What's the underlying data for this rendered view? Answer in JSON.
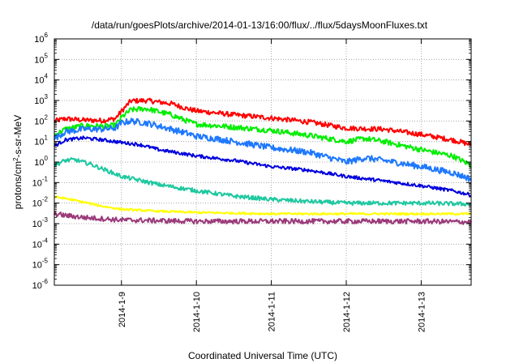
{
  "chart_data": {
    "type": "line",
    "title": "/data/run/goesPlots/archive/2014-01-13/16:00/flux/../flux/5daysMoonFluxes.txt",
    "xlabel": "Coordinated Universal Time (UTC)",
    "ylabel": {
      "base": "protons/cm",
      "sup": "2",
      "rest": "-s-sr-MeV"
    },
    "y_scale": "log",
    "ylim": [
      1e-06,
      1000000.0
    ],
    "y_ticks": [
      {
        "value": 1e-06,
        "base": "10",
        "exp": "-6"
      },
      {
        "value": 1e-05,
        "base": "10",
        "exp": "-5"
      },
      {
        "value": 0.0001,
        "base": "10",
        "exp": "-4"
      },
      {
        "value": 0.001,
        "base": "10",
        "exp": "-3"
      },
      {
        "value": 0.01,
        "base": "10",
        "exp": "-2"
      },
      {
        "value": 0.1,
        "base": "10",
        "exp": "-1"
      },
      {
        "value": 1.0,
        "base": "10",
        "exp": "0"
      },
      {
        "value": 10.0,
        "base": "10",
        "exp": "1"
      },
      {
        "value": 100.0,
        "base": "10",
        "exp": "2"
      },
      {
        "value": 1000.0,
        "base": "10",
        "exp": "3"
      },
      {
        "value": 10000.0,
        "base": "10",
        "exp": "4"
      },
      {
        "value": 100000.0,
        "base": "10",
        "exp": "5"
      },
      {
        "value": 1000000.0,
        "base": "10",
        "exp": "6"
      }
    ],
    "xlim": [
      "2014-01-08T02:30",
      "2014-01-13T16:00"
    ],
    "x_ticks": [
      {
        "value": "2014-01-09T00:00",
        "label": "2014-1-9"
      },
      {
        "value": "2014-01-10T00:00",
        "label": "2014-1-10"
      },
      {
        "value": "2014-01-11T00:00",
        "label": "2014-1-11"
      },
      {
        "value": "2014-01-12T00:00",
        "label": "2014-1-12"
      },
      {
        "value": "2014-01-13T00:00",
        "label": "2014-1-13"
      }
    ],
    "grid": true,
    "grid_style": "dotted",
    "series": [
      {
        "color": "#ff0000",
        "noise": 0.12,
        "points": [
          [
            "2014-01-08T02:30",
            100
          ],
          [
            "2014-01-08T06:00",
            130
          ],
          [
            "2014-01-08T12:00",
            110
          ],
          [
            "2014-01-08T18:00",
            105
          ],
          [
            "2014-01-08T22:00",
            130
          ],
          [
            "2014-01-09T00:00",
            300
          ],
          [
            "2014-01-09T03:00",
            950
          ],
          [
            "2014-01-09T08:00",
            1000
          ],
          [
            "2014-01-09T16:00",
            700
          ],
          [
            "2014-01-09T21:00",
            400
          ],
          [
            "2014-01-10T00:00",
            310
          ],
          [
            "2014-01-10T06:00",
            250
          ],
          [
            "2014-01-10T12:00",
            200
          ],
          [
            "2014-01-11T00:00",
            140
          ],
          [
            "2014-01-11T12:00",
            90
          ],
          [
            "2014-01-12T00:00",
            45
          ],
          [
            "2014-01-12T12:00",
            40
          ],
          [
            "2014-01-13T00:00",
            22
          ],
          [
            "2014-01-13T10:00",
            12
          ],
          [
            "2014-01-13T16:00",
            7
          ]
        ]
      },
      {
        "color": "#00ee00",
        "noise": 0.13,
        "points": [
          [
            "2014-01-08T02:30",
            20
          ],
          [
            "2014-01-08T06:00",
            40
          ],
          [
            "2014-01-08T12:00",
            60
          ],
          [
            "2014-01-08T18:00",
            55
          ],
          [
            "2014-01-08T22:00",
            60
          ],
          [
            "2014-01-09T00:00",
            150
          ],
          [
            "2014-01-09T03:00",
            350
          ],
          [
            "2014-01-09T08:00",
            400
          ],
          [
            "2014-01-09T16:00",
            200
          ],
          [
            "2014-01-09T21:00",
            100
          ],
          [
            "2014-01-10T00:00",
            70
          ],
          [
            "2014-01-10T06:00",
            60
          ],
          [
            "2014-01-10T12:00",
            50
          ],
          [
            "2014-01-11T00:00",
            35
          ],
          [
            "2014-01-11T12:00",
            20
          ],
          [
            "2014-01-12T00:00",
            10
          ],
          [
            "2014-01-12T06:00",
            14
          ],
          [
            "2014-01-12T12:00",
            10
          ],
          [
            "2014-01-13T00:00",
            4
          ],
          [
            "2014-01-13T10:00",
            2
          ],
          [
            "2014-01-13T16:00",
            0.7
          ]
        ]
      },
      {
        "color": "#1e78ff",
        "noise": 0.15,
        "points": [
          [
            "2014-01-08T02:30",
            14
          ],
          [
            "2014-01-08T06:00",
            30
          ],
          [
            "2014-01-08T12:00",
            40
          ],
          [
            "2014-01-08T18:00",
            40
          ],
          [
            "2014-01-08T22:00",
            45
          ],
          [
            "2014-01-09T00:00",
            80
          ],
          [
            "2014-01-09T03:00",
            100
          ],
          [
            "2014-01-09T08:00",
            80
          ],
          [
            "2014-01-09T16:00",
            40
          ],
          [
            "2014-01-09T21:00",
            25
          ],
          [
            "2014-01-10T00:00",
            18
          ],
          [
            "2014-01-10T06:00",
            14
          ],
          [
            "2014-01-10T12:00",
            10
          ],
          [
            "2014-01-11T00:00",
            5
          ],
          [
            "2014-01-11T12:00",
            3
          ],
          [
            "2014-01-12T00:00",
            1
          ],
          [
            "2014-01-12T06:00",
            1.6
          ],
          [
            "2014-01-12T12:00",
            1.2
          ],
          [
            "2014-01-13T00:00",
            0.6
          ],
          [
            "2014-01-13T10:00",
            0.3
          ],
          [
            "2014-01-13T16:00",
            0.15
          ]
        ]
      },
      {
        "color": "#0000dd",
        "noise": 0.08,
        "points": [
          [
            "2014-01-08T02:30",
            6
          ],
          [
            "2014-01-08T06:00",
            12
          ],
          [
            "2014-01-08T12:00",
            15
          ],
          [
            "2014-01-08T18:00",
            12
          ],
          [
            "2014-01-09T00:00",
            9
          ],
          [
            "2014-01-09T06:00",
            7
          ],
          [
            "2014-01-09T12:00",
            4
          ],
          [
            "2014-01-10T00:00",
            2
          ],
          [
            "2014-01-10T12:00",
            1.2
          ],
          [
            "2014-01-11T00:00",
            0.6
          ],
          [
            "2014-01-11T12:00",
            0.4
          ],
          [
            "2014-01-12T00:00",
            0.2
          ],
          [
            "2014-01-12T12:00",
            0.12
          ],
          [
            "2014-01-13T00:00",
            0.07
          ],
          [
            "2014-01-13T10:00",
            0.04
          ],
          [
            "2014-01-13T16:00",
            0.025
          ]
        ]
      },
      {
        "color": "#1fc8a0",
        "noise": 0.1,
        "points": [
          [
            "2014-01-08T02:30",
            0.7
          ],
          [
            "2014-01-08T06:00",
            1.2
          ],
          [
            "2014-01-08T09:00",
            1.3
          ],
          [
            "2014-01-08T14:00",
            0.8
          ],
          [
            "2014-01-08T20:00",
            0.35
          ],
          [
            "2014-01-09T00:00",
            0.2
          ],
          [
            "2014-01-09T12:00",
            0.08
          ],
          [
            "2014-01-10T00:00",
            0.04
          ],
          [
            "2014-01-10T12:00",
            0.022
          ],
          [
            "2014-01-11T00:00",
            0.015
          ],
          [
            "2014-01-11T12:00",
            0.012
          ],
          [
            "2014-01-12T00:00",
            0.01
          ],
          [
            "2014-01-13T00:00",
            0.01
          ],
          [
            "2014-01-13T16:00",
            0.009
          ]
        ]
      },
      {
        "color": "#ffff00",
        "noise": 0.05,
        "points": [
          [
            "2014-01-08T02:30",
            0.02
          ],
          [
            "2014-01-08T06:00",
            0.017
          ],
          [
            "2014-01-08T12:00",
            0.011
          ],
          [
            "2014-01-08T18:00",
            0.007
          ],
          [
            "2014-01-09T00:00",
            0.005
          ],
          [
            "2014-01-09T12:00",
            0.004
          ],
          [
            "2014-01-10T00:00",
            0.0035
          ],
          [
            "2014-01-11T00:00",
            0.003
          ],
          [
            "2014-01-12T00:00",
            0.003
          ],
          [
            "2014-01-13T16:00",
            0.003
          ]
        ]
      },
      {
        "color": "#9b3a7a",
        "noise": 0.12,
        "points": [
          [
            "2014-01-08T02:30",
            0.003
          ],
          [
            "2014-01-08T06:00",
            0.0025
          ],
          [
            "2014-01-08T12:00",
            0.002
          ],
          [
            "2014-01-09T00:00",
            0.0015
          ],
          [
            "2014-01-10T00:00",
            0.0013
          ],
          [
            "2014-01-11T00:00",
            0.0013
          ],
          [
            "2014-01-12T00:00",
            0.0013
          ],
          [
            "2014-01-13T00:00",
            0.0013
          ],
          [
            "2014-01-13T16:00",
            0.0012
          ]
        ]
      }
    ]
  }
}
